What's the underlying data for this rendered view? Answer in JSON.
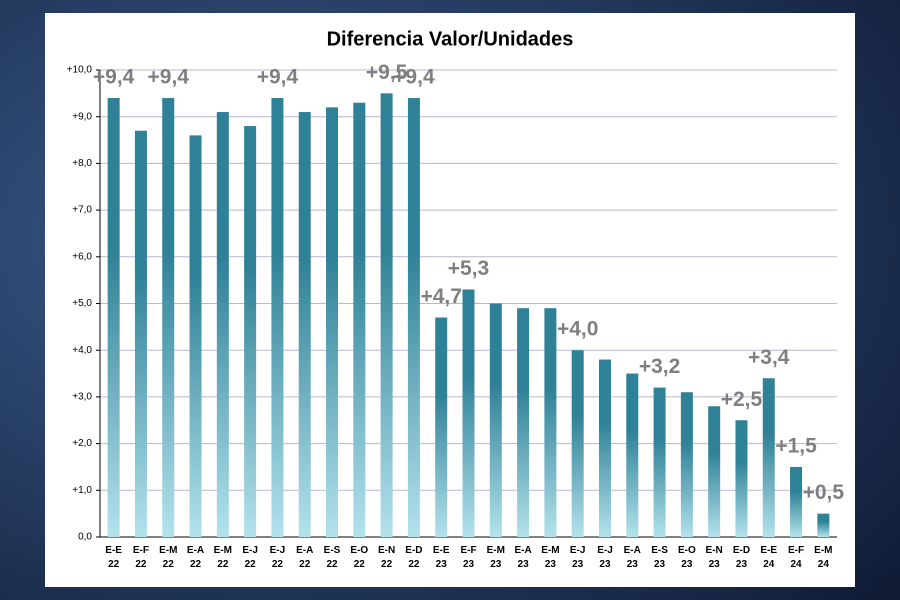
{
  "chart_data": {
    "type": "bar",
    "title": "Diferencia Valor/Unidades",
    "categories": [
      "E-E\n22",
      "E-F\n22",
      "E-M\n22",
      "E-A\n22",
      "E-M\n22",
      "E-J\n22",
      "E-J\n22",
      "E-A\n22",
      "E-S\n22",
      "E-O\n22",
      "E-N\n22",
      "E-D\n22",
      "E-E\n23",
      "E-F\n23",
      "E-M\n23",
      "E-A\n23",
      "E-M\n23",
      "E-J\n23",
      "E-J\n23",
      "E-A\n23",
      "E-S\n23",
      "E-O\n23",
      "E-N\n23",
      "E-D\n23",
      "E-E\n24",
      "E-F\n24",
      "E-M\n24"
    ],
    "values": [
      9.4,
      8.7,
      9.4,
      8.6,
      9.1,
      8.8,
      9.4,
      9.1,
      9.2,
      9.3,
      9.5,
      9.4,
      4.7,
      5.3,
      5.0,
      4.9,
      4.9,
      4.0,
      3.8,
      3.5,
      3.2,
      3.1,
      2.8,
      2.5,
      3.4,
      1.5,
      0.5
    ],
    "value_labels": [
      "+9,4",
      null,
      "+9,4",
      null,
      null,
      null,
      "+9,4",
      null,
      null,
      null,
      "+9,5",
      "+9,4",
      "+4,7",
      "+5,3",
      null,
      null,
      null,
      "+4,0",
      null,
      null,
      "+3,2",
      null,
      null,
      "+2,5",
      "+3,4",
      "+1,5",
      "+0,5"
    ],
    "color": "#2f8197",
    "color_light": "#b3e2ec",
    "ylim": [
      0,
      10
    ],
    "yticks": [
      {
        "value": 0,
        "label": "0,0"
      },
      {
        "value": 1,
        "label": "+1,0"
      },
      {
        "value": 2,
        "label": "+2,0"
      },
      {
        "value": 3,
        "label": "+3,0"
      },
      {
        "value": 4,
        "label": "+4,0"
      },
      {
        "value": 5,
        "label": "+5,0"
      },
      {
        "value": 6,
        "label": "+6,0"
      },
      {
        "value": 7,
        "label": "+7,0"
      },
      {
        "value": 8,
        "label": "+8,0"
      },
      {
        "value": 9,
        "label": "+9,0"
      },
      {
        "value": 10,
        "label": "+10,0"
      }
    ],
    "grid": true
  }
}
